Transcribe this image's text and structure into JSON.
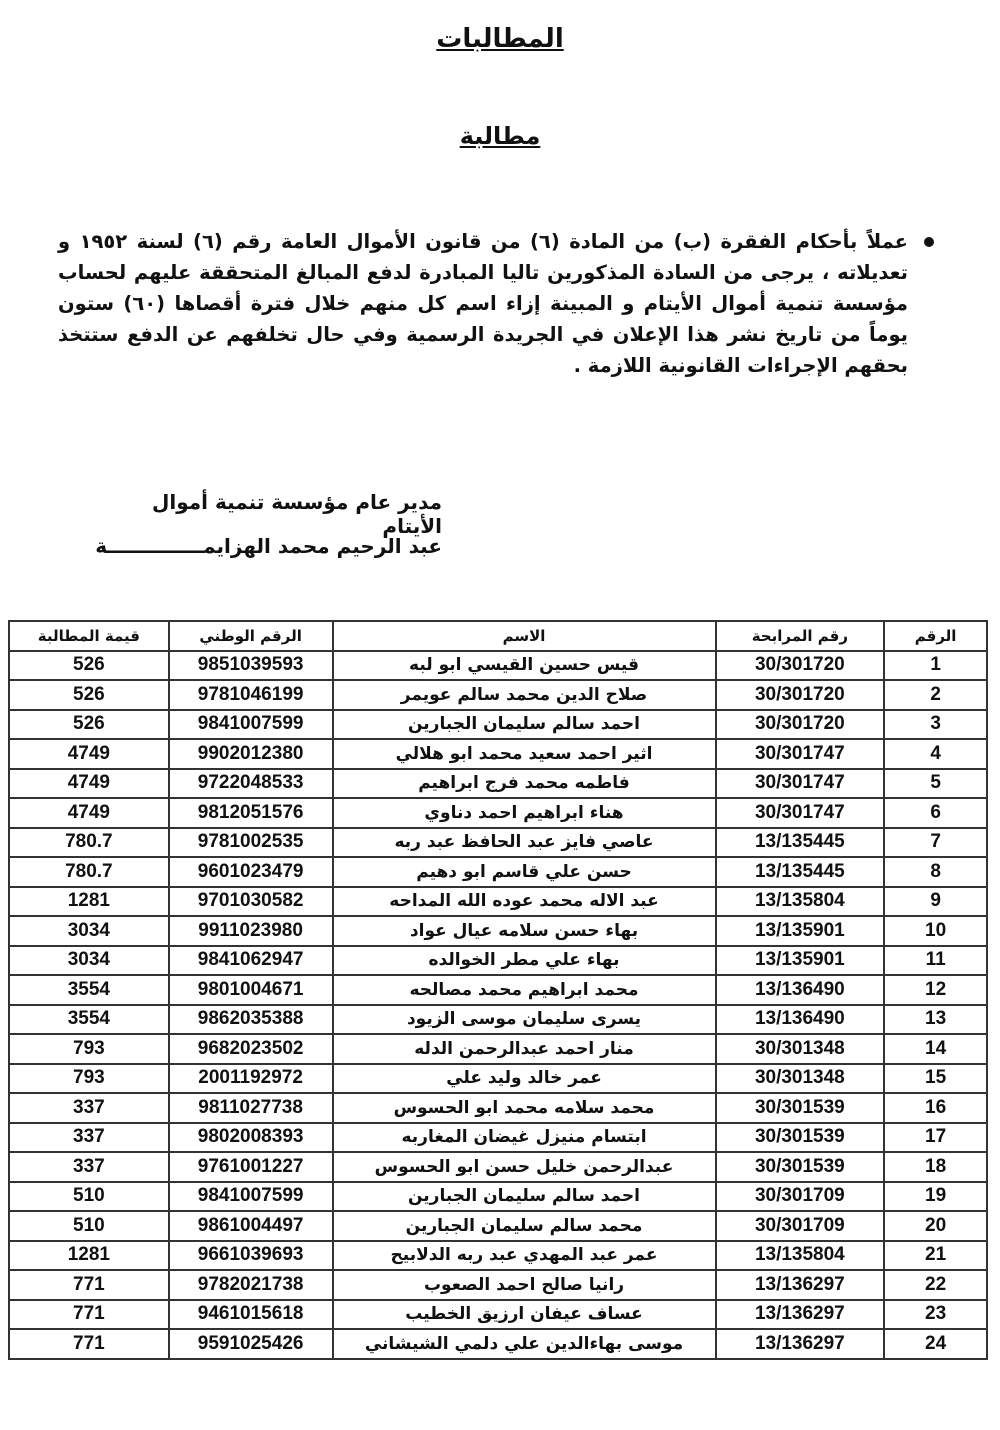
{
  "header": {
    "title": "المطالبات",
    "subtitle": "مطالبة"
  },
  "notice": "عملاً بأحكام الفقرة (ب) من المادة (٦) من قانون الأموال العامة رقم (٦) لسنة ١٩٥٢ و تعديلاته ، يرجى من السادة المذكورين تاليا المبادرة لدفع المبالغ المتحققة عليهم لحساب مؤسسة تنمية أموال الأيتام و المبينة إزاء اسم كل منهم خلال فترة أقصاها (٦٠) ستون يوماً من تاريخ نشر هذا الإعلان في الجريدة الرسمية وفي حال تخلفهم عن الدفع ستتخذ بحقهم الإجراءات القانونية اللازمة .",
  "signature": {
    "position": "مدير عام مؤسسة تنمية أموال الأيتام",
    "name": "عبد الرحيم محمد الهزايمــــــــــــــة"
  },
  "table": {
    "headers": {
      "no": "الرقم",
      "murabaha": "رقم المرابحة",
      "name": "الاسم",
      "national_id": "الرقم الوطني",
      "amount": "قيمة المطالبة"
    },
    "rows": [
      {
        "no": "1",
        "murabaha": "30/301720",
        "name": "قيس حسين القيسي ابو لبه",
        "national_id": "9851039593",
        "amount": "526"
      },
      {
        "no": "2",
        "murabaha": "30/301720",
        "name": "صلاح الدين محمد سالم عويمر",
        "national_id": "9781046199",
        "amount": "526"
      },
      {
        "no": "3",
        "murabaha": "30/301720",
        "name": "احمد سالم سليمان الجبارين",
        "national_id": "9841007599",
        "amount": "526"
      },
      {
        "no": "4",
        "murabaha": "30/301747",
        "name": "اثير احمد سعيد محمد ابو هلالي",
        "national_id": "9902012380",
        "amount": "4749"
      },
      {
        "no": "5",
        "murabaha": "30/301747",
        "name": "فاطمه محمد فرج ابراهيم",
        "national_id": "9722048533",
        "amount": "4749"
      },
      {
        "no": "6",
        "murabaha": "30/301747",
        "name": "هناء ابراهيم احمد دناوي",
        "national_id": "9812051576",
        "amount": "4749"
      },
      {
        "no": "7",
        "murabaha": "13/135445",
        "name": "عاصي فايز عبد الحافظ عبد ربه",
        "national_id": "9781002535",
        "amount": "780.7"
      },
      {
        "no": "8",
        "murabaha": "13/135445",
        "name": "حسن علي قاسم ابو دهيم",
        "national_id": "9601023479",
        "amount": "780.7"
      },
      {
        "no": "9",
        "murabaha": "13/135804",
        "name": "عبد الاله محمد عوده الله المداحه",
        "national_id": "9701030582",
        "amount": "1281"
      },
      {
        "no": "10",
        "murabaha": "13/135901",
        "name": "بهاء حسن سلامه عيال عواد",
        "national_id": "9911023980",
        "amount": "3034"
      },
      {
        "no": "11",
        "murabaha": "13/135901",
        "name": "بهاء علي مطر الخوالده",
        "national_id": "9841062947",
        "amount": "3034"
      },
      {
        "no": "12",
        "murabaha": "13/136490",
        "name": "محمد ابراهيم محمد مصالحه",
        "national_id": "9801004671",
        "amount": "3554"
      },
      {
        "no": "13",
        "murabaha": "13/136490",
        "name": "يسرى سليمان موسى الزيود",
        "national_id": "9862035388",
        "amount": "3554"
      },
      {
        "no": "14",
        "murabaha": "30/301348",
        "name": "منار احمد عبدالرحمن الدله",
        "national_id": "9682023502",
        "amount": "793"
      },
      {
        "no": "15",
        "murabaha": "30/301348",
        "name": "عمر خالد وليد علي",
        "national_id": "2001192972",
        "amount": "793"
      },
      {
        "no": "16",
        "murabaha": "30/301539",
        "name": "محمد سلامه محمد ابو الحسوس",
        "national_id": "9811027738",
        "amount": "337"
      },
      {
        "no": "17",
        "murabaha": "30/301539",
        "name": "ابتسام منيزل غيضان المغاربه",
        "national_id": "9802008393",
        "amount": "337"
      },
      {
        "no": "18",
        "murabaha": "30/301539",
        "name": "عبدالرحمن خليل حسن ابو الحسوس",
        "national_id": "9761001227",
        "amount": "337"
      },
      {
        "no": "19",
        "murabaha": "30/301709",
        "name": "احمد سالم سليمان الجبارين",
        "national_id": "9841007599",
        "amount": "510"
      },
      {
        "no": "20",
        "murabaha": "30/301709",
        "name": "محمد سالم سليمان الجبارين",
        "national_id": "9861004497",
        "amount": "510"
      },
      {
        "no": "21",
        "murabaha": "13/135804",
        "name": "عمر عبد المهدي عبد ربه الدلابيح",
        "national_id": "9661039693",
        "amount": "1281"
      },
      {
        "no": "22",
        "murabaha": "13/136297",
        "name": "رانيا صالح احمد الصعوب",
        "national_id": "9782021738",
        "amount": "771"
      },
      {
        "no": "23",
        "murabaha": "13/136297",
        "name": "عساف عيفان ارزيق الخطيب",
        "national_id": "9461015618",
        "amount": "771"
      },
      {
        "no": "24",
        "murabaha": "13/136297",
        "name": "موسى بهاءالدين علي دلمي الشيشاني",
        "national_id": "9591025426",
        "amount": "771"
      }
    ]
  }
}
